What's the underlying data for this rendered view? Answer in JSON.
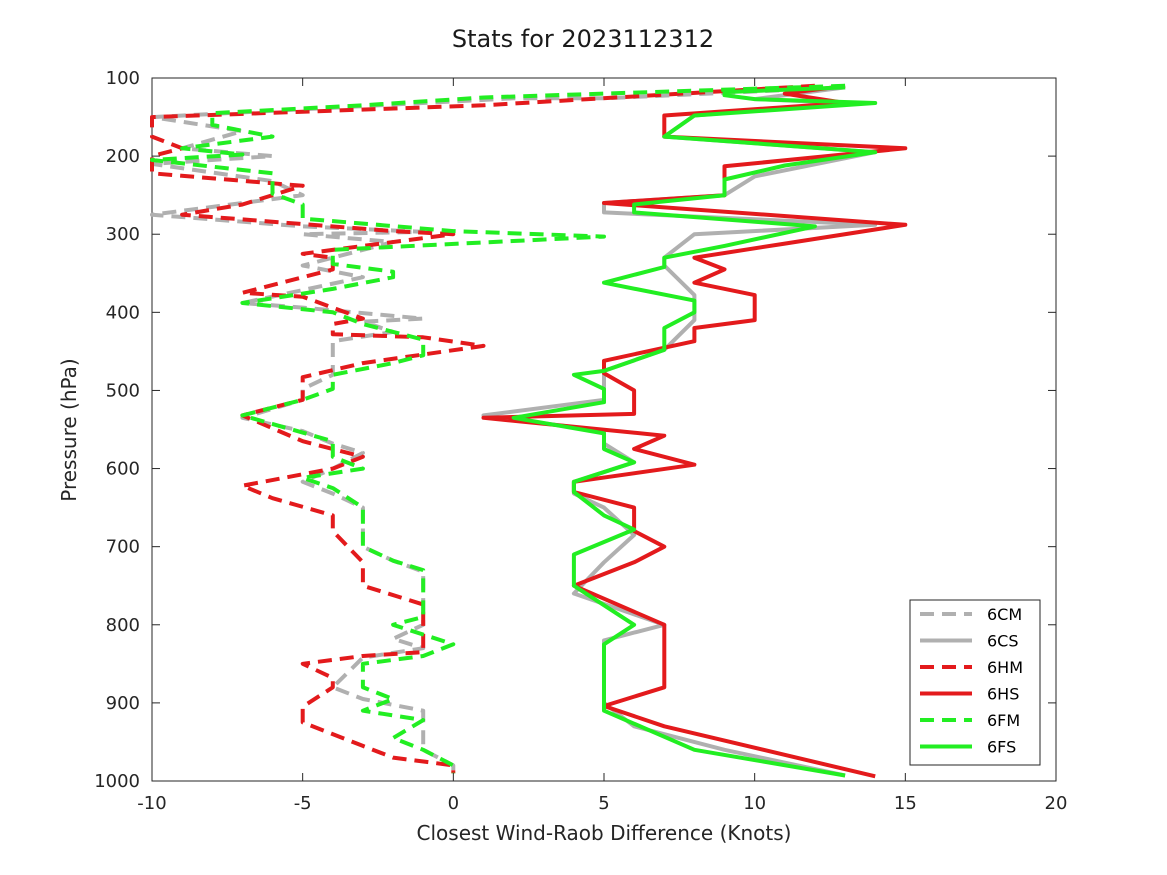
{
  "chart_data": {
    "type": "line",
    "title": "Stats for 2023112312",
    "xlabel": "Closest Wind-Raob Difference (Knots)",
    "ylabel": "Pressure (hPa)",
    "xlim": [
      -10,
      20
    ],
    "ylim": [
      100,
      1000
    ],
    "y_reversed": true,
    "grid": false,
    "legend_position": "bottom-right",
    "x_ticks": [
      -10,
      -5,
      0,
      5,
      10,
      15,
      20
    ],
    "y_ticks": [
      100,
      200,
      300,
      400,
      500,
      600,
      700,
      800,
      900,
      1000
    ],
    "series": [
      {
        "name": "6CM",
        "color": "#b0b0b0",
        "dashed": true,
        "points": [
          [
            13,
            112
          ],
          [
            5,
            126
          ],
          [
            2,
            126
          ],
          [
            -10,
            150
          ],
          [
            -7,
            168
          ],
          [
            -9,
            190
          ],
          [
            -6,
            200
          ],
          [
            -10,
            210
          ],
          [
            -6,
            232
          ],
          [
            -5,
            250
          ],
          [
            -10,
            275
          ],
          [
            -5,
            290
          ],
          [
            -1,
            297
          ],
          [
            -5,
            300
          ],
          [
            -2,
            310
          ],
          [
            -4,
            330
          ],
          [
            -5,
            340
          ],
          [
            -3,
            355
          ],
          [
            -7,
            388
          ],
          [
            -5,
            394
          ],
          [
            -1,
            408
          ],
          [
            -3,
            412
          ],
          [
            -2,
            425
          ],
          [
            -4,
            437
          ],
          [
            -4,
            460
          ],
          [
            -4,
            480
          ],
          [
            -5,
            498
          ],
          [
            -5,
            512
          ],
          [
            -7,
            535
          ],
          [
            -5,
            552
          ],
          [
            -4,
            568
          ],
          [
            -3,
            580
          ],
          [
            -4,
            600
          ],
          [
            -5,
            617
          ],
          [
            -4,
            632
          ],
          [
            -3,
            650
          ],
          [
            -3,
            670
          ],
          [
            -3,
            700
          ],
          [
            -2,
            718
          ],
          [
            -1,
            732
          ],
          [
            -1,
            760
          ],
          [
            -1,
            800
          ],
          [
            -2,
            818
          ],
          [
            -1,
            830
          ],
          [
            -3,
            842
          ],
          [
            -4,
            880
          ],
          [
            -3,
            895
          ],
          [
            -1,
            910
          ],
          [
            -1,
            925
          ],
          [
            -1,
            945
          ],
          [
            -1,
            960
          ],
          [
            0,
            980
          ],
          [
            0,
            990
          ]
        ]
      },
      {
        "name": "6CS",
        "color": "#b0b0b0",
        "dashed": false,
        "points": [
          [
            13,
            112
          ],
          [
            10,
            127
          ],
          [
            13,
            132
          ],
          [
            8,
            148
          ],
          [
            7,
            175
          ],
          [
            14,
            195
          ],
          [
            10,
            226
          ],
          [
            9,
            250
          ],
          [
            5,
            260
          ],
          [
            5,
            272
          ],
          [
            14,
            288
          ],
          [
            8,
            300
          ],
          [
            7,
            330
          ],
          [
            7,
            340
          ],
          [
            8,
            378
          ],
          [
            8,
            410
          ],
          [
            7,
            448
          ],
          [
            5,
            475
          ],
          [
            5,
            480
          ],
          [
            5,
            512
          ],
          [
            1,
            532
          ],
          [
            5,
            552
          ],
          [
            5,
            568
          ],
          [
            6,
            592
          ],
          [
            4,
            617
          ],
          [
            4,
            632
          ],
          [
            5,
            650
          ],
          [
            6,
            685
          ],
          [
            5,
            720
          ],
          [
            4,
            760
          ],
          [
            7,
            800
          ],
          [
            5,
            820
          ],
          [
            5,
            850
          ],
          [
            5,
            880
          ],
          [
            5,
            890
          ],
          [
            5,
            900
          ],
          [
            6,
            930
          ],
          [
            9,
            960
          ],
          [
            13,
            993
          ]
        ]
      },
      {
        "name": "6HM",
        "color": "#e31a1c",
        "dashed": true,
        "points": [
          [
            12,
            110
          ],
          [
            1,
            135
          ],
          [
            -10,
            150
          ],
          [
            -10,
            175
          ],
          [
            -9,
            190
          ],
          [
            -10,
            200
          ],
          [
            -10,
            205
          ],
          [
            -10,
            222
          ],
          [
            -5,
            238
          ],
          [
            -7,
            262
          ],
          [
            -9,
            275
          ],
          [
            -2,
            296
          ],
          [
            0,
            300
          ],
          [
            -5,
            325
          ],
          [
            -4,
            330
          ],
          [
            -4,
            345
          ],
          [
            -7,
            375
          ],
          [
            -5,
            380
          ],
          [
            -3,
            408
          ],
          [
            -4,
            415
          ],
          [
            -4,
            428
          ],
          [
            -1,
            432
          ],
          [
            1,
            443
          ],
          [
            -3,
            465
          ],
          [
            -5,
            483
          ],
          [
            -5,
            498
          ],
          [
            -5,
            512
          ],
          [
            -7,
            532
          ],
          [
            -5,
            565
          ],
          [
            -3,
            585
          ],
          [
            -4,
            600
          ],
          [
            -7,
            622
          ],
          [
            -6,
            638
          ],
          [
            -4,
            660
          ],
          [
            -4,
            680
          ],
          [
            -3,
            720
          ],
          [
            -3,
            740
          ],
          [
            -3,
            750
          ],
          [
            -1,
            774
          ],
          [
            -1,
            800
          ],
          [
            -1,
            800
          ],
          [
            -1,
            820
          ],
          [
            -1,
            835
          ],
          [
            -3,
            840
          ],
          [
            -5,
            850
          ],
          [
            -4,
            868
          ],
          [
            -4,
            880
          ],
          [
            -5,
            905
          ],
          [
            -5,
            925
          ],
          [
            -3,
            955
          ],
          [
            -2,
            970
          ],
          [
            0,
            980
          ],
          [
            0,
            990
          ]
        ]
      },
      {
        "name": "6HS",
        "color": "#e31a1c",
        "dashed": false,
        "points": [
          [
            13,
            110
          ],
          [
            11,
            120
          ],
          [
            13,
            132
          ],
          [
            7,
            148
          ],
          [
            7,
            175
          ],
          [
            15,
            190
          ],
          [
            9,
            213
          ],
          [
            9,
            250
          ],
          [
            5,
            260
          ],
          [
            15,
            288
          ],
          [
            11,
            312
          ],
          [
            8,
            330
          ],
          [
            9,
            345
          ],
          [
            8,
            362
          ],
          [
            10,
            378
          ],
          [
            10,
            410
          ],
          [
            8,
            420
          ],
          [
            8,
            437
          ],
          [
            5,
            462
          ],
          [
            5,
            478
          ],
          [
            6,
            500
          ],
          [
            6,
            530
          ],
          [
            1,
            535
          ],
          [
            7,
            558
          ],
          [
            6,
            575
          ],
          [
            8,
            595
          ],
          [
            4,
            617
          ],
          [
            4,
            630
          ],
          [
            6,
            650
          ],
          [
            6,
            680
          ],
          [
            7,
            700
          ],
          [
            6,
            720
          ],
          [
            4,
            750
          ],
          [
            7,
            800
          ],
          [
            7,
            820
          ],
          [
            7,
            850
          ],
          [
            7,
            880
          ],
          [
            5,
            904
          ],
          [
            7,
            930
          ],
          [
            14,
            994
          ]
        ]
      },
      {
        "name": "6FM",
        "color": "#22ee22",
        "dashed": true,
        "points": [
          [
            13,
            110
          ],
          [
            1,
            125
          ],
          [
            -3,
            135
          ],
          [
            -8,
            145
          ],
          [
            -8,
            160
          ],
          [
            -6,
            175
          ],
          [
            -9,
            190
          ],
          [
            -7,
            198
          ],
          [
            -10,
            205
          ],
          [
            -6,
            222
          ],
          [
            -6,
            232
          ],
          [
            -6,
            248
          ],
          [
            -5,
            262
          ],
          [
            -5,
            270
          ],
          [
            -5,
            280
          ],
          [
            0,
            296
          ],
          [
            5,
            303
          ],
          [
            -4,
            320
          ],
          [
            -4,
            338
          ],
          [
            -2,
            348
          ],
          [
            -2,
            355
          ],
          [
            -4,
            370
          ],
          [
            -7,
            388
          ],
          [
            -4,
            400
          ],
          [
            -3,
            415
          ],
          [
            -2,
            425
          ],
          [
            -1,
            435
          ],
          [
            -1,
            455
          ],
          [
            -2,
            465
          ],
          [
            -4,
            480
          ],
          [
            -4,
            498
          ],
          [
            -5,
            512
          ],
          [
            -7,
            532
          ],
          [
            -4,
            565
          ],
          [
            -4,
            585
          ],
          [
            -3,
            600
          ],
          [
            -5,
            612
          ],
          [
            -4,
            625
          ],
          [
            -3,
            650
          ],
          [
            -3,
            680
          ],
          [
            -3,
            700
          ],
          [
            -2,
            718
          ],
          [
            -1,
            730
          ],
          [
            -1,
            760
          ],
          [
            -1,
            790
          ],
          [
            -2,
            800
          ],
          [
            0,
            825
          ],
          [
            -1,
            840
          ],
          [
            -3,
            850
          ],
          [
            -3,
            880
          ],
          [
            -2,
            895
          ],
          [
            -3,
            910
          ],
          [
            -1,
            922
          ],
          [
            -2,
            945
          ],
          [
            -1,
            960
          ],
          [
            0,
            980
          ],
          [
            0,
            990
          ]
        ]
      },
      {
        "name": "6FS",
        "color": "#22ee22",
        "dashed": false,
        "points": [
          [
            13,
            112
          ],
          [
            9,
            118
          ],
          [
            9,
            122
          ],
          [
            10,
            127
          ],
          [
            14,
            132
          ],
          [
            8,
            148
          ],
          [
            7,
            175
          ],
          [
            14,
            195
          ],
          [
            11,
            212
          ],
          [
            9,
            230
          ],
          [
            9,
            250
          ],
          [
            6,
            262
          ],
          [
            6,
            272
          ],
          [
            12,
            290
          ],
          [
            9,
            315
          ],
          [
            7,
            330
          ],
          [
            7,
            342
          ],
          [
            5,
            362
          ],
          [
            8,
            385
          ],
          [
            8,
            400
          ],
          [
            7,
            420
          ],
          [
            7,
            448
          ],
          [
            5,
            475
          ],
          [
            4,
            480
          ],
          [
            5,
            498
          ],
          [
            5,
            515
          ],
          [
            2,
            535
          ],
          [
            5,
            555
          ],
          [
            5,
            575
          ],
          [
            6,
            592
          ],
          [
            4,
            617
          ],
          [
            4,
            630
          ],
          [
            5,
            660
          ],
          [
            6,
            678
          ],
          [
            4,
            710
          ],
          [
            4,
            750
          ],
          [
            6,
            800
          ],
          [
            5,
            825
          ],
          [
            5,
            850
          ],
          [
            5,
            880
          ],
          [
            5,
            890
          ],
          [
            5,
            910
          ],
          [
            8,
            960
          ],
          [
            13,
            993
          ]
        ]
      }
    ]
  }
}
